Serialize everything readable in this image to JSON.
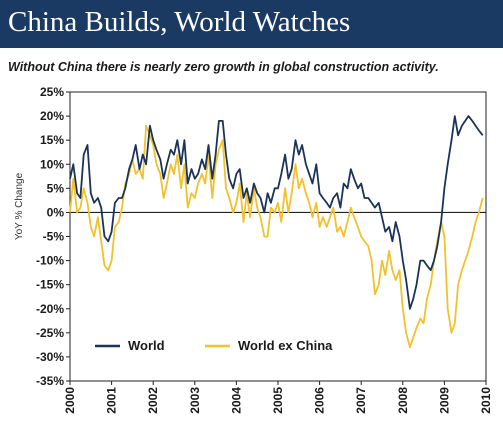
{
  "header": {
    "title": "China Builds, World Watches",
    "subtitle": "Without China there is nearly zero growth in global construction activity."
  },
  "colors": {
    "banner": "#1b3a63",
    "world": "#1a3358",
    "world_ex_china": "#f2c12e",
    "zero_line": "#222222",
    "axis": "#222222"
  },
  "chart_data": {
    "type": "line",
    "ylabel": "YoY % Change",
    "xlabel": "",
    "ylim": [
      -35,
      25
    ],
    "xlim": [
      2000,
      2010
    ],
    "yticks": [
      25,
      20,
      15,
      10,
      5,
      0,
      -5,
      -10,
      -15,
      -20,
      -25,
      -30,
      -35
    ],
    "ytick_labels": [
      "25%",
      "20%",
      "15%",
      "10%",
      "5%",
      "0%",
      "-5%",
      "-10%",
      "-15%",
      "-20%",
      "-25%",
      "-30%",
      "-35%"
    ],
    "xticks": [
      2000,
      2001,
      2002,
      2003,
      2004,
      2005,
      2006,
      2007,
      2008,
      2009,
      2010
    ],
    "xtick_labels": [
      "2000",
      "2001",
      "2002",
      "2003",
      "2004",
      "2005",
      "2006",
      "2007",
      "2008",
      "2009",
      "2010"
    ],
    "grid": false,
    "legend_position": "bottom-left",
    "series": [
      {
        "name": "World",
        "x": [
          2000.0,
          2000.08,
          2000.17,
          2000.25,
          2000.33,
          2000.42,
          2000.5,
          2000.58,
          2000.67,
          2000.75,
          2000.83,
          2000.92,
          2001.0,
          2001.08,
          2001.17,
          2001.25,
          2001.33,
          2001.42,
          2001.5,
          2001.58,
          2001.67,
          2001.75,
          2001.83,
          2001.92,
          2002.0,
          2002.08,
          2002.17,
          2002.25,
          2002.33,
          2002.42,
          2002.5,
          2002.58,
          2002.67,
          2002.75,
          2002.83,
          2002.92,
          2003.0,
          2003.08,
          2003.17,
          2003.25,
          2003.33,
          2003.42,
          2003.5,
          2003.58,
          2003.67,
          2003.75,
          2003.83,
          2003.92,
          2004.0,
          2004.08,
          2004.17,
          2004.25,
          2004.33,
          2004.42,
          2004.5,
          2004.58,
          2004.67,
          2004.75,
          2004.83,
          2004.92,
          2005.0,
          2005.08,
          2005.17,
          2005.25,
          2005.33,
          2005.42,
          2005.5,
          2005.58,
          2005.67,
          2005.75,
          2005.83,
          2005.92,
          2006.0,
          2006.08,
          2006.17,
          2006.25,
          2006.33,
          2006.42,
          2006.5,
          2006.58,
          2006.67,
          2006.75,
          2006.83,
          2006.92,
          2007.0,
          2007.08,
          2007.17,
          2007.25,
          2007.33,
          2007.42,
          2007.5,
          2007.58,
          2007.67,
          2007.75,
          2007.83,
          2007.92,
          2008.0,
          2008.08,
          2008.17,
          2008.25,
          2008.33,
          2008.42,
          2008.5,
          2008.58,
          2008.67,
          2008.75,
          2008.83,
          2008.92,
          2009.0,
          2009.08,
          2009.17,
          2009.25,
          2009.33,
          2009.42,
          2009.5,
          2009.58,
          2009.67,
          2009.75,
          2009.83,
          2009.92
        ],
        "values": [
          7,
          10,
          4,
          3,
          12,
          14,
          4,
          2,
          3,
          1,
          -5,
          -6,
          -4,
          2,
          3,
          3,
          5,
          9,
          11,
          14,
          9,
          12,
          10,
          18,
          15,
          13,
          11,
          7,
          10,
          13,
          12,
          15,
          10,
          15,
          6,
          9,
          7,
          8,
          11,
          9,
          14,
          7,
          12,
          19,
          19,
          12,
          7,
          5,
          8,
          9,
          3,
          5,
          2,
          6,
          4,
          3,
          0,
          4,
          2,
          5,
          5,
          8,
          12,
          7,
          9,
          15,
          12,
          14,
          10,
          8,
          6,
          10,
          4,
          3,
          2,
          1,
          3,
          4,
          1,
          6,
          5,
          9,
          7,
          5,
          6,
          3,
          3,
          2,
          1,
          2,
          -1,
          -4,
          -3,
          -6,
          -2,
          -5,
          -10,
          -14,
          -20,
          -18,
          -15,
          -10,
          -10,
          -11,
          -12,
          -10,
          -7,
          -2,
          5,
          10,
          15,
          20,
          16,
          18,
          19,
          20,
          19,
          18,
          17,
          16
        ]
      },
      {
        "name": "World ex China",
        "x": [
          2000.0,
          2000.08,
          2000.17,
          2000.25,
          2000.33,
          2000.42,
          2000.5,
          2000.58,
          2000.67,
          2000.75,
          2000.83,
          2000.92,
          2001.0,
          2001.08,
          2001.17,
          2001.25,
          2001.33,
          2001.42,
          2001.5,
          2001.58,
          2001.67,
          2001.75,
          2001.83,
          2001.92,
          2002.0,
          2002.08,
          2002.17,
          2002.25,
          2002.33,
          2002.42,
          2002.5,
          2002.58,
          2002.67,
          2002.75,
          2002.83,
          2002.92,
          2003.0,
          2003.08,
          2003.17,
          2003.25,
          2003.33,
          2003.42,
          2003.5,
          2003.58,
          2003.67,
          2003.75,
          2003.83,
          2003.92,
          2004.0,
          2004.08,
          2004.17,
          2004.25,
          2004.33,
          2004.42,
          2004.5,
          2004.58,
          2004.67,
          2004.75,
          2004.83,
          2004.92,
          2005.0,
          2005.08,
          2005.17,
          2005.25,
          2005.33,
          2005.42,
          2005.5,
          2005.58,
          2005.67,
          2005.75,
          2005.83,
          2005.92,
          2006.0,
          2006.08,
          2006.17,
          2006.25,
          2006.33,
          2006.42,
          2006.5,
          2006.58,
          2006.67,
          2006.75,
          2006.83,
          2006.92,
          2007.0,
          2007.08,
          2007.17,
          2007.25,
          2007.33,
          2007.42,
          2007.5,
          2007.58,
          2007.67,
          2007.75,
          2007.83,
          2007.92,
          2008.0,
          2008.08,
          2008.17,
          2008.25,
          2008.33,
          2008.42,
          2008.5,
          2008.58,
          2008.67,
          2008.75,
          2008.83,
          2008.92,
          2009.0,
          2009.08,
          2009.17,
          2009.25,
          2009.33,
          2009.42,
          2009.5,
          2009.58,
          2009.67,
          2009.75,
          2009.83,
          2009.92
        ],
        "values": [
          0,
          7,
          0,
          1,
          5,
          2,
          -3,
          -5,
          -1,
          -6,
          -11,
          -12,
          -10,
          -3,
          -2,
          1,
          6,
          8,
          11,
          8,
          9,
          7,
          18,
          16,
          14,
          10,
          8,
          3,
          6,
          10,
          8,
          12,
          5,
          10,
          1,
          4,
          3,
          6,
          8,
          6,
          12,
          3,
          10,
          13,
          15,
          5,
          3,
          0,
          2,
          6,
          -2,
          4,
          -1,
          5,
          1,
          -1,
          -5,
          -5,
          1,
          0,
          2,
          -2,
          5,
          0,
          4,
          10,
          5,
          7,
          4,
          2,
          -1,
          2,
          -3,
          -1,
          -3,
          -1,
          1,
          -4,
          -3,
          -5,
          -2,
          1,
          -1,
          -3,
          -5,
          -6,
          -7,
          -10,
          -17,
          -15,
          -10,
          -13,
          -8,
          -12,
          -14,
          -12,
          -20,
          -25,
          -28,
          -26,
          -24,
          -22,
          -23,
          -18,
          -15,
          -10,
          -6,
          -2,
          -5,
          -20,
          -25,
          -23,
          -15,
          -12,
          -10,
          -8,
          -5,
          -2,
          0,
          3
        ]
      }
    ]
  }
}
